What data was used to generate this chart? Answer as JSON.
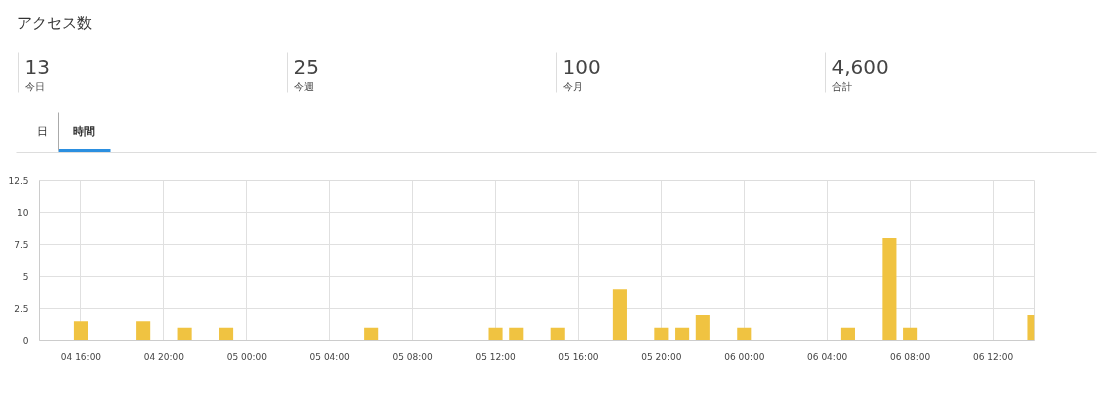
{
  "chart_data": [
    {
      "type": "other",
      "title": "アクセス数",
      "annotations": [
        "13",
        "今日",
        "25",
        "今週",
        "100",
        "今月",
        "4,600",
        "合計",
        "日",
        "時間"
      ]
    },
    {
      "type": "bar",
      "categories": [
        null,
        null,
        "04 16:00",
        null,
        null,
        null,
        "04 20:00",
        null,
        null,
        null,
        "05 00:00",
        null,
        null,
        null,
        "05 04:00",
        null,
        null,
        null,
        "05 08:00",
        null,
        null,
        null,
        "05 12:00",
        null,
        null,
        null,
        "05 16:00",
        null,
        null,
        null,
        "05 20:00",
        null,
        null,
        null,
        "06 00:00",
        null,
        null,
        null,
        "06 04:00",
        null,
        null,
        null,
        "06 08:00",
        null,
        null,
        null,
        "06 12:00",
        null,
        null
      ],
      "values": [
        0,
        0,
        1.5,
        0,
        0,
        1.5,
        0,
        1,
        0,
        1,
        0,
        0,
        0,
        0,
        0,
        0,
        1,
        0,
        0,
        0,
        0,
        0,
        1,
        1,
        0,
        1,
        0,
        0,
        4,
        0,
        1,
        1,
        2,
        0,
        1,
        0,
        0,
        0,
        0,
        1,
        0,
        8,
        1,
        0,
        0,
        0,
        0,
        0,
        2
      ],
      "color": "#f0c341",
      "ylim": [
        0,
        12.5
      ],
      "yticks": [
        0,
        2.5,
        5,
        7.5,
        10,
        12.5
      ],
      "grid": true
    }
  ]
}
